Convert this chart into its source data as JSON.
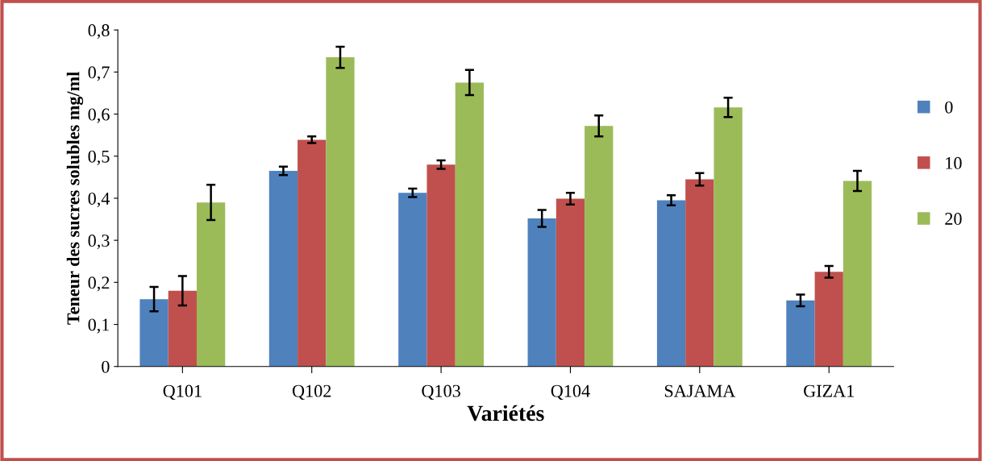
{
  "chart_data": {
    "type": "bar",
    "xlabel": "Variétés",
    "ylabel": "Teneur des sucres solubles mg/ml",
    "categories": [
      "Q101",
      "Q102",
      "Q103",
      "Q104",
      "SAJAMA",
      "GIZA1"
    ],
    "series": [
      {
        "name": "0",
        "color": "#4f81bd",
        "values": [
          0.16,
          0.465,
          0.413,
          0.352,
          0.395,
          0.157
        ],
        "errors": [
          0.029,
          0.01,
          0.01,
          0.02,
          0.012,
          0.014
        ]
      },
      {
        "name": "10",
        "color": "#c0504d",
        "values": [
          0.18,
          0.539,
          0.48,
          0.399,
          0.445,
          0.225
        ],
        "errors": [
          0.035,
          0.008,
          0.01,
          0.014,
          0.015,
          0.014
        ]
      },
      {
        "name": "20",
        "color": "#9bbb59",
        "values": [
          0.39,
          0.735,
          0.675,
          0.572,
          0.616,
          0.441
        ],
        "errors": [
          0.042,
          0.025,
          0.03,
          0.025,
          0.023,
          0.024
        ]
      }
    ],
    "ylim": [
      0,
      0.8
    ],
    "yticks": [
      {
        "value": 0,
        "label": "0"
      },
      {
        "value": 0.1,
        "label": "0,1"
      },
      {
        "value": 0.2,
        "label": "0,2"
      },
      {
        "value": 0.3,
        "label": "0,3"
      },
      {
        "value": 0.4,
        "label": "0,4"
      },
      {
        "value": 0.5,
        "label": "0,5"
      },
      {
        "value": 0.6,
        "label": "0,6"
      },
      {
        "value": 0.7,
        "label": "0,7"
      },
      {
        "value": 0.8,
        "label": "0,8"
      }
    ],
    "legend": "right",
    "grid": false
  }
}
